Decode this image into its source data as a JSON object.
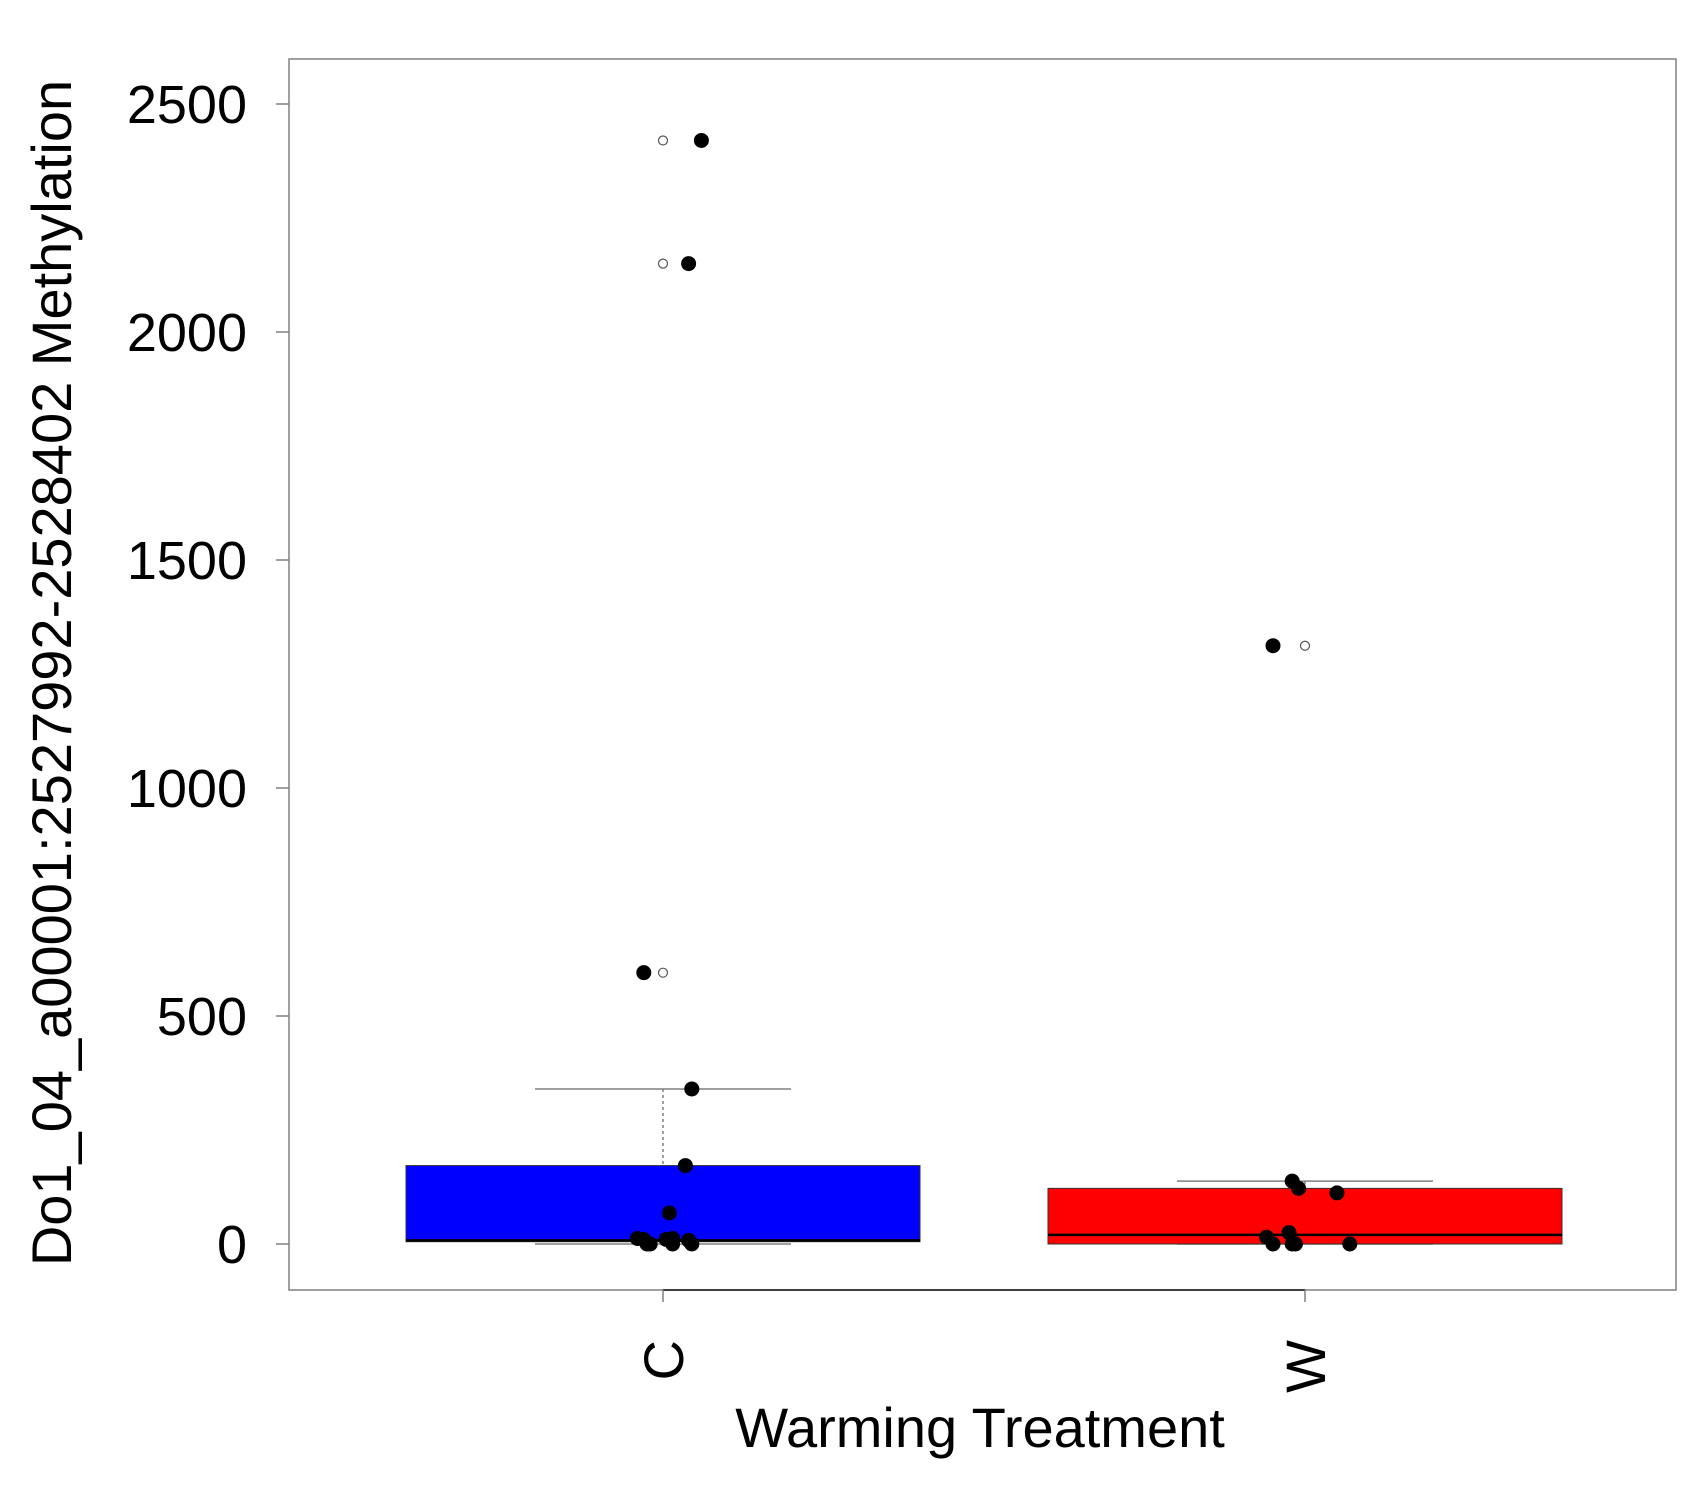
{
  "chart_data": {
    "type": "boxplot",
    "xlabel": "Warming Treatment",
    "ylabel": "Do1_04_a00001:2527992-2528402 Methylation",
    "ylim": [
      -100,
      2600
    ],
    "yticks": [
      0,
      500,
      1000,
      1500,
      2000,
      2500
    ],
    "ytick_labels": [
      "0",
      "500",
      "1000",
      "1500",
      "2000",
      "2500"
    ],
    "categories": [
      "C",
      "W"
    ],
    "colors": {
      "C": "#0000ff",
      "W": "#ff0000",
      "points": "#000000",
      "axis": "#808080",
      "whisker": "#808080",
      "median": "#000000"
    },
    "groups": [
      {
        "category": "C",
        "color": "#0000ff",
        "q1": 5,
        "median": 8,
        "q3": 172,
        "whisker_low": 0,
        "whisker_high": 340,
        "outliers": [
          595,
          2150,
          2420
        ],
        "points": [
          {
            "x_jitter": 0.56,
            "y": 2420
          },
          {
            "x_jitter": 0.54,
            "y": 2150
          },
          {
            "x_jitter": 0.47,
            "y": 595
          },
          {
            "x_jitter": 0.545,
            "y": 340
          },
          {
            "x_jitter": 0.535,
            "y": 172
          },
          {
            "x_jitter": 0.51,
            "y": 68
          },
          {
            "x_jitter": 0.46,
            "y": 12
          },
          {
            "x_jitter": 0.47,
            "y": 10
          },
          {
            "x_jitter": 0.475,
            "y": 0
          },
          {
            "x_jitter": 0.48,
            "y": 0
          },
          {
            "x_jitter": 0.505,
            "y": 10
          },
          {
            "x_jitter": 0.515,
            "y": 12
          },
          {
            "x_jitter": 0.515,
            "y": 0
          },
          {
            "x_jitter": 0.54,
            "y": 8
          },
          {
            "x_jitter": 0.545,
            "y": 0
          }
        ]
      },
      {
        "category": "W",
        "color": "#ff0000",
        "q1": 0,
        "median": 20,
        "q3": 122,
        "whisker_low": 0,
        "whisker_high": 138,
        "outliers": [
          1312
        ],
        "points": [
          {
            "x_jitter": 0.45,
            "y": 1312
          },
          {
            "x_jitter": 0.48,
            "y": 138
          },
          {
            "x_jitter": 0.49,
            "y": 122
          },
          {
            "x_jitter": 0.55,
            "y": 112
          },
          {
            "x_jitter": 0.44,
            "y": 15
          },
          {
            "x_jitter": 0.475,
            "y": 25
          },
          {
            "x_jitter": 0.45,
            "y": 0
          },
          {
            "x_jitter": 0.48,
            "y": 0
          },
          {
            "x_jitter": 0.485,
            "y": 0
          },
          {
            "x_jitter": 0.57,
            "y": 0
          }
        ]
      }
    ],
    "grid": false,
    "legend": "none"
  }
}
